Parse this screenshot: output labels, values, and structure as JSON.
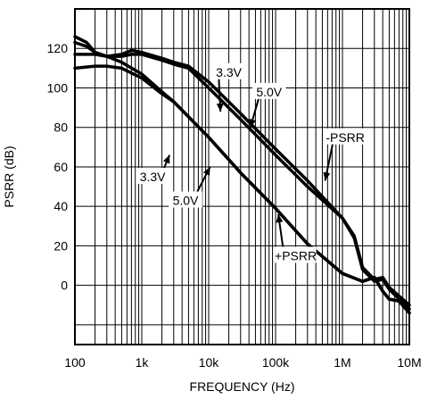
{
  "chart_data": {
    "type": "line",
    "xlabel": "FREQUENCY (Hz)",
    "ylabel": "PSRR (dB)",
    "xscale": "log",
    "xlim": [
      100,
      10000000
    ],
    "ylim": [
      -30,
      140
    ],
    "grid": true,
    "x_ticks": [
      {
        "value": 100,
        "label": "100"
      },
      {
        "value": 1000,
        "label": "1k"
      },
      {
        "value": 10000,
        "label": "10k"
      },
      {
        "value": 100000,
        "label": "100k"
      },
      {
        "value": 1000000,
        "label": "1M"
      },
      {
        "value": 10000000,
        "label": "10M"
      }
    ],
    "y_ticks": [
      {
        "value": 120,
        "label": "120"
      },
      {
        "value": 100,
        "label": "100"
      },
      {
        "value": 80,
        "label": "80"
      },
      {
        "value": 60,
        "label": "60"
      },
      {
        "value": 40,
        "label": "40"
      },
      {
        "value": 20,
        "label": "20"
      },
      {
        "value": 0,
        "label": "0"
      }
    ],
    "series": [
      {
        "group": "-PSRR",
        "supply": "3.3V",
        "x": [
          100,
          150,
          200,
          300,
          500,
          700,
          1000,
          2000,
          3000,
          5000,
          10000,
          30000,
          100000,
          300000,
          1000000,
          1500000,
          2000000,
          3000000,
          4000000,
          5000000,
          10000000
        ],
        "y": [
          123,
          121,
          118,
          116,
          116,
          117,
          117,
          114,
          112,
          110,
          100,
          84,
          66,
          50,
          34,
          24,
          8,
          2,
          3,
          -2,
          -12
        ]
      },
      {
        "group": "-PSRR",
        "supply": "5.0V",
        "x": [
          100,
          150,
          200,
          300,
          500,
          700,
          1000,
          2000,
          3000,
          5000,
          10000,
          30000,
          100000,
          300000,
          1000000,
          1500000,
          2000000,
          3000000,
          4000000,
          5000000,
          10000000
        ],
        "y": [
          126,
          123,
          118,
          116,
          117,
          119,
          118,
          115,
          113,
          111,
          103,
          87,
          69,
          53,
          34,
          25,
          9,
          3,
          4,
          -1,
          -10
        ]
      },
      {
        "group": "+PSRR",
        "supply": "3.3V",
        "x": [
          100,
          200,
          300,
          500,
          1000,
          2000,
          3000,
          10000,
          30000,
          100000,
          300000,
          1000000,
          2000000,
          3000000,
          4000000,
          5000000,
          7000000,
          10000000
        ],
        "y": [
          110,
          111,
          111,
          110,
          105,
          97,
          93,
          75,
          57,
          39,
          21,
          6,
          2,
          4,
          -3,
          -7,
          -8,
          -14
        ]
      },
      {
        "group": "+PSRR",
        "supply": "5.0V",
        "x": [
          100,
          200,
          300,
          500,
          1000,
          2000,
          3000,
          10000,
          30000,
          100000,
          300000,
          1000000,
          2000000,
          3000000,
          4000000,
          5000000,
          7000000,
          10000000
        ],
        "y": [
          117,
          117,
          116,
          113,
          107,
          98,
          93,
          75,
          57,
          39,
          21,
          6,
          2,
          4,
          -3,
          -7,
          -8,
          -14
        ]
      }
    ],
    "annotations": [
      {
        "text": "3.3V",
        "tx": 20000,
        "ty": 108,
        "ax": 15000,
        "ay": 88
      },
      {
        "text": "5.0V",
        "tx": 80000,
        "ty": 98,
        "ax": 42000,
        "ay": 80
      },
      {
        "text": "-PSRR",
        "tx": 1100000,
        "ty": 75,
        "ax": 550000,
        "ay": 53
      },
      {
        "text": "3.3V",
        "tx": 1450,
        "ty": 55,
        "ax": 2600,
        "ay": 66
      },
      {
        "text": "5.0V",
        "tx": 4500,
        "ty": 43,
        "ax": 10500,
        "ay": 60
      },
      {
        "text": "+PSRR",
        "tx": 200000,
        "ty": 15,
        "ax": 110000,
        "ay": 36
      }
    ]
  }
}
